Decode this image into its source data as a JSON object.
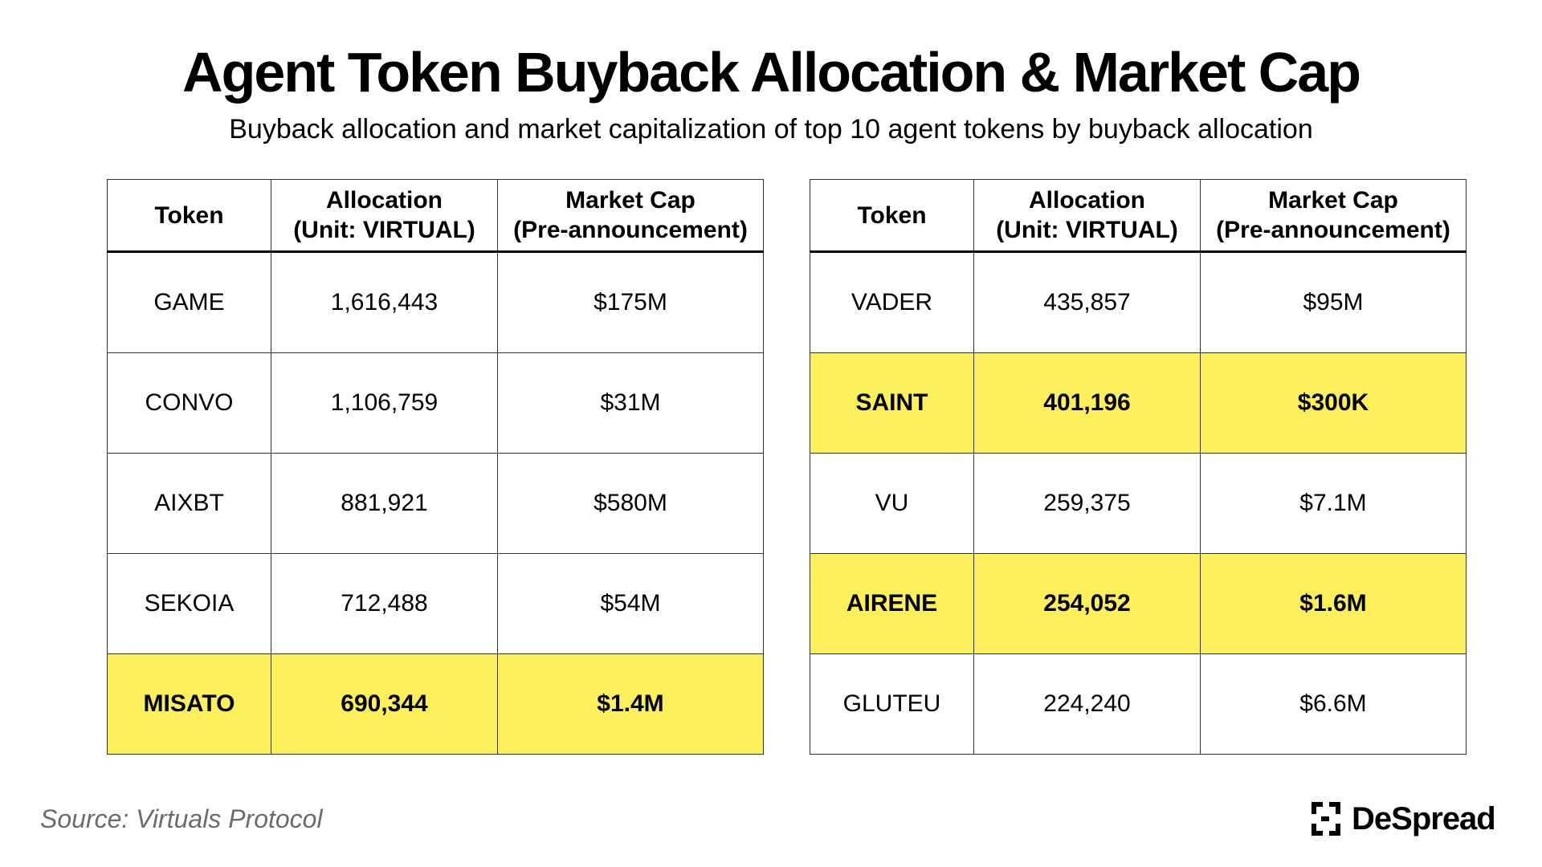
{
  "title": "Agent Token Buyback Allocation & Market Cap",
  "subtitle": "Buyback allocation and market capitalization of top 10 agent tokens by buyback allocation",
  "source": "Source: Virtuals Protocol",
  "brand": "DeSpread",
  "colors": {
    "highlight": "#fbf05b",
    "source_text": "#6b6b6b"
  },
  "chart_data": {
    "type": "table",
    "columns": [
      {
        "line1": "Token",
        "line2": ""
      },
      {
        "line1": "Allocation",
        "line2": "(Unit: VIRTUAL)"
      },
      {
        "line1": "Market Cap",
        "line2": "(Pre-announcement)"
      }
    ],
    "tables": [
      {
        "rows": [
          {
            "token": "GAME",
            "allocation": "1,616,443",
            "market_cap": "$175M",
            "highlight": false
          },
          {
            "token": "CONVO",
            "allocation": "1,106,759",
            "market_cap": "$31M",
            "highlight": false
          },
          {
            "token": "AIXBT",
            "allocation": "881,921",
            "market_cap": "$580M",
            "highlight": false
          },
          {
            "token": "SEKOIA",
            "allocation": "712,488",
            "market_cap": "$54M",
            "highlight": false
          },
          {
            "token": "MISATO",
            "allocation": "690,344",
            "market_cap": "$1.4M",
            "highlight": true
          }
        ]
      },
      {
        "rows": [
          {
            "token": "VADER",
            "allocation": "435,857",
            "market_cap": "$95M",
            "highlight": false
          },
          {
            "token": "SAINT",
            "allocation": "401,196",
            "market_cap": "$300K",
            "highlight": true
          },
          {
            "token": "VU",
            "allocation": "259,375",
            "market_cap": "$7.1M",
            "highlight": false
          },
          {
            "token": "AIRENE",
            "allocation": "254,052",
            "market_cap": "$1.6M",
            "highlight": true
          },
          {
            "token": "GLUTEU",
            "allocation": "224,240",
            "market_cap": "$6.6M",
            "highlight": false
          }
        ]
      }
    ]
  }
}
